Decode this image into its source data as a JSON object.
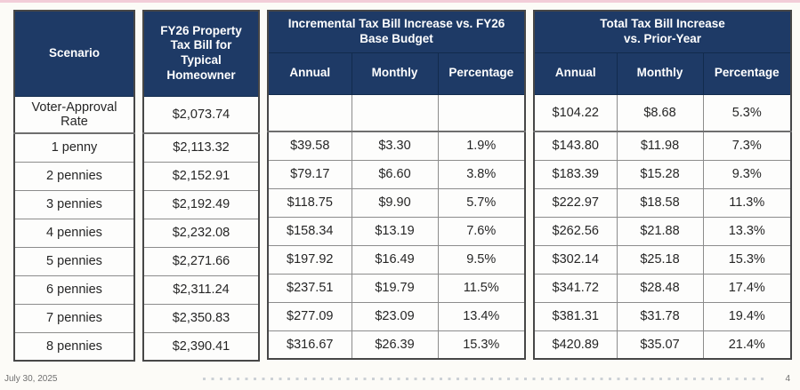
{
  "page": {
    "footer_date": "July 30, 2025",
    "page_number": "4",
    "accent_colors": {
      "header_navy": "#1e3a66",
      "top_strip_pink": "#f2cdd8"
    }
  },
  "table": {
    "scenario_header": "Scenario",
    "fy26_header": "FY26 Property\nTax Bill for\nTypical\nHomeowner",
    "incremental_title": "Incremental Tax Bill Increase vs. FY26\nBase Budget",
    "total_title": "Total Tax Bill Increase\nvs. Prior-Year",
    "sub_headers": [
      "Annual",
      "Monthly",
      "Percentage"
    ],
    "rows": [
      {
        "scenario": "Voter-Approval Rate",
        "fy26": "$2,073.74",
        "inc_annual": "",
        "inc_monthly": "",
        "inc_pct": "",
        "tot_annual": "$104.22",
        "tot_monthly": "$8.68",
        "tot_pct": "5.3%"
      },
      {
        "scenario": "1 penny",
        "fy26": "$2,113.32",
        "inc_annual": "$39.58",
        "inc_monthly": "$3.30",
        "inc_pct": "1.9%",
        "tot_annual": "$143.80",
        "tot_monthly": "$11.98",
        "tot_pct": "7.3%"
      },
      {
        "scenario": "2 pennies",
        "fy26": "$2,152.91",
        "inc_annual": "$79.17",
        "inc_monthly": "$6.60",
        "inc_pct": "3.8%",
        "tot_annual": "$183.39",
        "tot_monthly": "$15.28",
        "tot_pct": "9.3%"
      },
      {
        "scenario": "3 pennies",
        "fy26": "$2,192.49",
        "inc_annual": "$118.75",
        "inc_monthly": "$9.90",
        "inc_pct": "5.7%",
        "tot_annual": "$222.97",
        "tot_monthly": "$18.58",
        "tot_pct": "11.3%"
      },
      {
        "scenario": "4 pennies",
        "fy26": "$2,232.08",
        "inc_annual": "$158.34",
        "inc_monthly": "$13.19",
        "inc_pct": "7.6%",
        "tot_annual": "$262.56",
        "tot_monthly": "$21.88",
        "tot_pct": "13.3%"
      },
      {
        "scenario": "5 pennies",
        "fy26": "$2,271.66",
        "inc_annual": "$197.92",
        "inc_monthly": "$16.49",
        "inc_pct": "9.5%",
        "tot_annual": "$302.14",
        "tot_monthly": "$25.18",
        "tot_pct": "15.3%"
      },
      {
        "scenario": "6 pennies",
        "fy26": "$2,311.24",
        "inc_annual": "$237.51",
        "inc_monthly": "$19.79",
        "inc_pct": "11.5%",
        "tot_annual": "$341.72",
        "tot_monthly": "$28.48",
        "tot_pct": "17.4%"
      },
      {
        "scenario": "7 pennies",
        "fy26": "$2,350.83",
        "inc_annual": "$277.09",
        "inc_monthly": "$23.09",
        "inc_pct": "13.4%",
        "tot_annual": "$381.31",
        "tot_monthly": "$31.78",
        "tot_pct": "19.4%"
      },
      {
        "scenario": "8 pennies",
        "fy26": "$2,390.41",
        "inc_annual": "$316.67",
        "inc_monthly": "$26.39",
        "inc_pct": "15.3%",
        "tot_annual": "$420.89",
        "tot_monthly": "$35.07",
        "tot_pct": "21.4%"
      }
    ]
  }
}
